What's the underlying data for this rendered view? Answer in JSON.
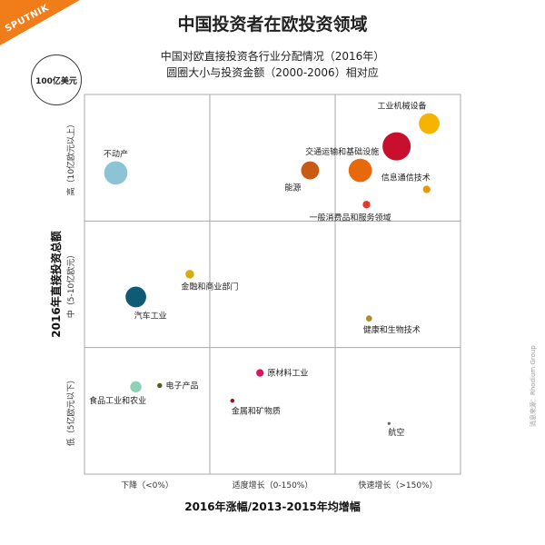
{
  "logo": {
    "text": "SPUTNIK",
    "color": "#f07c1a"
  },
  "title": "中国投资者在欧投资领域",
  "subtitle_1": "中国对欧直接投资各行业分配情况（2016年）",
  "subtitle_2": "圆圈大小与投资金额（2000-2006）相对应",
  "legend": {
    "label": "100亿美元"
  },
  "source": "消息来源：Rhodium Group",
  "chart_data": {
    "type": "scatter",
    "xlabel": "2016年涨幅/2013-2015年均增幅",
    "ylabel": "2016年直接投资总额",
    "x_categories": [
      "下降（<0%）",
      "适度增长（0-150%）",
      "快速增长（>150%）"
    ],
    "y_categories": [
      "低（5亿欧元以下）",
      "中（5-10亿欧元）",
      "高（10亿欧元以上）"
    ],
    "x_range": [
      0,
      3
    ],
    "y_range": [
      0,
      3
    ],
    "grid": true,
    "points": [
      {
        "label": "不动产",
        "x": 0.25,
        "y": 2.38,
        "size": 0.62,
        "color": "#8cc4d6"
      },
      {
        "label": "工业机械设备",
        "x": 2.75,
        "y": 2.77,
        "size": 0.55,
        "color": "#f5b400"
      },
      {
        "label": "",
        "x": 2.49,
        "y": 2.59,
        "size": 0.75,
        "color": "#c8102e"
      },
      {
        "label": "交通运输和基础设施",
        "x": 2.2,
        "y": 2.4,
        "size": 0.62,
        "color": "#e8690c"
      },
      {
        "label": "能源",
        "x": 1.8,
        "y": 2.4,
        "size": 0.48,
        "color": "#c85a13"
      },
      {
        "label": "信息通信技术",
        "x": 2.73,
        "y": 2.25,
        "size": 0.2,
        "color": "#e8960c"
      },
      {
        "label": "一般消费品和服务领域",
        "x": 2.25,
        "y": 2.13,
        "size": 0.2,
        "color": "#e03a2d"
      },
      {
        "label": "金融和商业部门",
        "x": 0.84,
        "y": 1.58,
        "size": 0.23,
        "color": "#d4ac0d"
      },
      {
        "label": "汽车工业",
        "x": 0.41,
        "y": 1.4,
        "size": 0.55,
        "color": "#0f5a75"
      },
      {
        "label": "健康和生物技术",
        "x": 2.27,
        "y": 1.23,
        "size": 0.16,
        "color": "#b08a2e"
      },
      {
        "label": "原材料工业",
        "x": 1.4,
        "y": 0.8,
        "size": 0.2,
        "color": "#e0115f"
      },
      {
        "label": "食品工业和农业",
        "x": 0.41,
        "y": 0.69,
        "size": 0.3,
        "color": "#8fd1b6"
      },
      {
        "label": "电子产品",
        "x": 0.6,
        "y": 0.7,
        "size": 0.13,
        "color": "#4a5d23"
      },
      {
        "label": "金属和矿物质",
        "x": 1.18,
        "y": 0.58,
        "size": 0.11,
        "color": "#a0151f"
      },
      {
        "label": "航空",
        "x": 2.43,
        "y": 0.4,
        "size": 0.08,
        "color": "#666666"
      }
    ]
  }
}
